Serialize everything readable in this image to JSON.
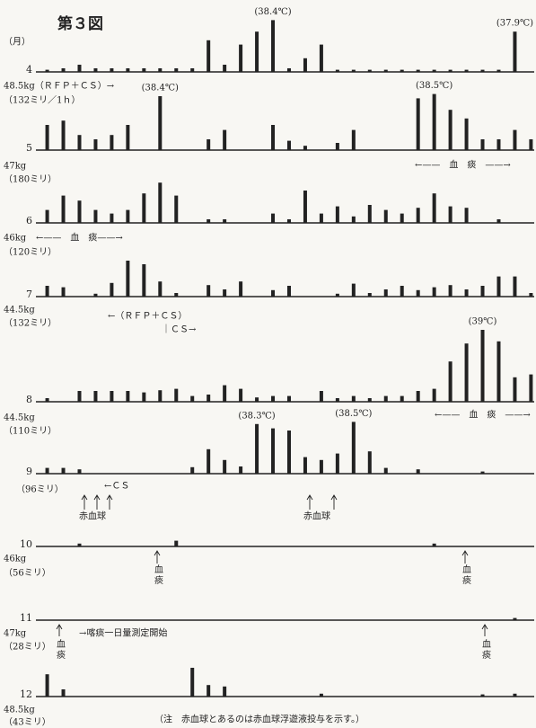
{
  "title": "第３図",
  "axis_label": "（月）",
  "notes": [
    "48.5kg（ＲＦＰ＋ＣＳ）→",
    "（132ミリ／1ｈ）",
    "←——　血　痰　——→",
    "47kg",
    "（180ミリ）",
    "46kg",
    "←——　血　痰——→",
    "（120ミリ）",
    "44.5kg",
    "（132ミリ）",
    "←（ＲＦＰ＋ＣＳ）",
    "｜ＣＳ→",
    "←——　血　痰　——→",
    "44.5kg",
    "（110ミリ）",
    "（96ミリ）",
    "←ＣＳ",
    "赤血球",
    "赤血球",
    "46kg",
    "（56ミリ）",
    "血痰",
    "血痰",
    "47kg",
    "（28ミリ）",
    "→喀痰一日量測定開始",
    "血痰",
    "血痰",
    "48.5kg",
    "（43ミリ）"
  ],
  "footnote": "（注　赤血球とあるのは赤血球浮遊液投与を示す。）",
  "chart_data": [
    {
      "type": "bar",
      "title": "4",
      "xlim": [
        0.3,
        31.2
      ],
      "ylim": [
        0,
        10
      ],
      "color": "#222222",
      "x": [
        1,
        2,
        3,
        4,
        5,
        6,
        7,
        8,
        9,
        10,
        11,
        12,
        13,
        14,
        15,
        16,
        17,
        18,
        19,
        20,
        21,
        22,
        23,
        24,
        25,
        26,
        27,
        28,
        29,
        30,
        31
      ],
      "values": [
        0.3,
        0.5,
        1,
        0.5,
        0.5,
        0.5,
        0.5,
        0.5,
        0.5,
        0.5,
        4.4,
        1,
        3.8,
        5.6,
        7.2,
        0.5,
        1.9,
        3.8,
        0.3,
        0.3,
        0.3,
        0.3,
        0.3,
        0.3,
        0.3,
        0.3,
        0.3,
        0.3,
        0.3,
        5.6,
        null
      ],
      "annotations": [
        {
          "x": 15,
          "text": "(38.4℃)"
        },
        {
          "x": 30,
          "text": "(37.9℃)"
        }
      ]
    },
    {
      "type": "bar",
      "title": "5",
      "xlim": [
        0.3,
        31.2
      ],
      "ylim": [
        0,
        10
      ],
      "color": "#222222",
      "x": [
        1,
        2,
        3,
        4,
        5,
        6,
        7,
        8,
        9,
        10,
        11,
        12,
        13,
        14,
        15,
        16,
        17,
        18,
        19,
        20,
        21,
        22,
        23,
        24,
        25,
        26,
        27,
        28,
        29,
        30,
        31
      ],
      "values": [
        3.5,
        4.1,
        2.1,
        1.5,
        2.1,
        3.5,
        null,
        7.5,
        null,
        null,
        1.5,
        2.8,
        null,
        null,
        3.5,
        1.3,
        0.6,
        null,
        1,
        2.8,
        null,
        null,
        null,
        7.2,
        7.8,
        5.6,
        4.4,
        1.5,
        1.5,
        2.8,
        1.5
      ],
      "annotations": [
        {
          "x": 8,
          "text": "(38.4℃)"
        },
        {
          "x": 25,
          "text": "(38.5℃)"
        }
      ]
    },
    {
      "type": "bar",
      "title": "6",
      "xlim": [
        0.3,
        31.2
      ],
      "ylim": [
        0,
        10
      ],
      "color": "#222222",
      "x": [
        1,
        2,
        3,
        4,
        5,
        6,
        7,
        8,
        9,
        10,
        11,
        12,
        13,
        14,
        15,
        16,
        17,
        18,
        19,
        20,
        21,
        22,
        23,
        24,
        25,
        26,
        27,
        28,
        29,
        30,
        31
      ],
      "values": [
        1.8,
        3.8,
        3.1,
        1.8,
        1.3,
        1.8,
        4.1,
        5.6,
        3.8,
        null,
        0.5,
        0.5,
        null,
        null,
        1.3,
        0.5,
        4.5,
        1.3,
        2.3,
        0.9,
        2.5,
        1.8,
        1.3,
        2.1,
        4.1,
        2.3,
        2.1,
        null,
        0.5,
        null,
        null
      ]
    },
    {
      "type": "bar",
      "title": "7",
      "xlim": [
        0.3,
        31.2
      ],
      "ylim": [
        0,
        10
      ],
      "color": "#222222",
      "x": [
        1,
        2,
        3,
        4,
        5,
        6,
        7,
        8,
        9,
        10,
        11,
        12,
        13,
        14,
        15,
        16,
        17,
        18,
        19,
        20,
        21,
        22,
        23,
        24,
        25,
        26,
        27,
        28,
        29,
        30,
        31
      ],
      "values": [
        1.5,
        1.3,
        null,
        0.4,
        1.9,
        5,
        4.5,
        2.1,
        0.5,
        null,
        1.6,
        1,
        2.1,
        null,
        0.9,
        1.5,
        null,
        null,
        0.4,
        1.8,
        0.5,
        1,
        1.5,
        0.9,
        1.3,
        1.6,
        1,
        1.5,
        2.8,
        2.8,
        0.5
      ]
    },
    {
      "type": "bar",
      "title": "8",
      "xlim": [
        0.3,
        31.2
      ],
      "ylim": [
        0,
        10
      ],
      "color": "#222222",
      "x": [
        1,
        2,
        3,
        4,
        5,
        6,
        7,
        8,
        9,
        10,
        11,
        12,
        13,
        14,
        15,
        16,
        17,
        18,
        19,
        20,
        21,
        22,
        23,
        24,
        25,
        26,
        27,
        28,
        29,
        30,
        31
      ],
      "values": [
        0.5,
        null,
        1.5,
        1.5,
        1.5,
        1.5,
        1.3,
        1.6,
        1.8,
        0.8,
        1,
        2.3,
        1.8,
        0.6,
        0.8,
        0.8,
        null,
        1.5,
        0.5,
        0.8,
        0.5,
        0.8,
        0.8,
        1.5,
        1.8,
        5.6,
        8.1,
        10,
        8.4,
        3.4,
        3.8
      ],
      "annotations": [
        {
          "x": 28,
          "text": "(39℃)"
        }
      ]
    },
    {
      "type": "bar",
      "title": "9",
      "xlim": [
        0.3,
        31.2
      ],
      "ylim": [
        0,
        10
      ],
      "color": "#222222",
      "x": [
        1,
        2,
        3,
        4,
        5,
        6,
        7,
        8,
        9,
        10,
        11,
        12,
        13,
        14,
        15,
        16,
        17,
        18,
        19,
        20,
        21,
        22,
        23,
        24,
        25,
        26,
        27,
        28,
        29,
        30,
        31
      ],
      "values": [
        0.8,
        0.8,
        0.6,
        null,
        null,
        null,
        null,
        null,
        null,
        0.9,
        3.4,
        1.9,
        1,
        6.9,
        6.3,
        6,
        2.3,
        1.9,
        2.8,
        7.2,
        3.1,
        0.8,
        null,
        0.6,
        null,
        null,
        null,
        0.3,
        null,
        null,
        null
      ],
      "annotations": [
        {
          "x": 14,
          "text": "(38.3℃)"
        },
        {
          "x": 20,
          "text": "(38.5℃)"
        }
      ]
    },
    {
      "type": "bar",
      "title": "10",
      "xlim": [
        0.3,
        31.2
      ],
      "ylim": [
        0,
        10
      ],
      "color": "#222222",
      "x": [
        3,
        9,
        25
      ],
      "values": [
        0.4,
        0.8,
        0.4
      ]
    },
    {
      "type": "bar",
      "title": "11",
      "xlim": [
        0.3,
        31.2
      ],
      "ylim": [
        0,
        10
      ],
      "color": "#222222",
      "x": [
        30
      ],
      "values": [
        0.3
      ]
    },
    {
      "type": "bar",
      "title": "12",
      "xlim": [
        0.3,
        31.2
      ],
      "ylim": [
        0,
        10
      ],
      "color": "#222222",
      "x": [
        1,
        2,
        10,
        11,
        12,
        18,
        28,
        30
      ],
      "values": [
        3.1,
        1,
        4,
        1.6,
        1.4,
        0.4,
        0.3,
        0.4
      ]
    }
  ]
}
